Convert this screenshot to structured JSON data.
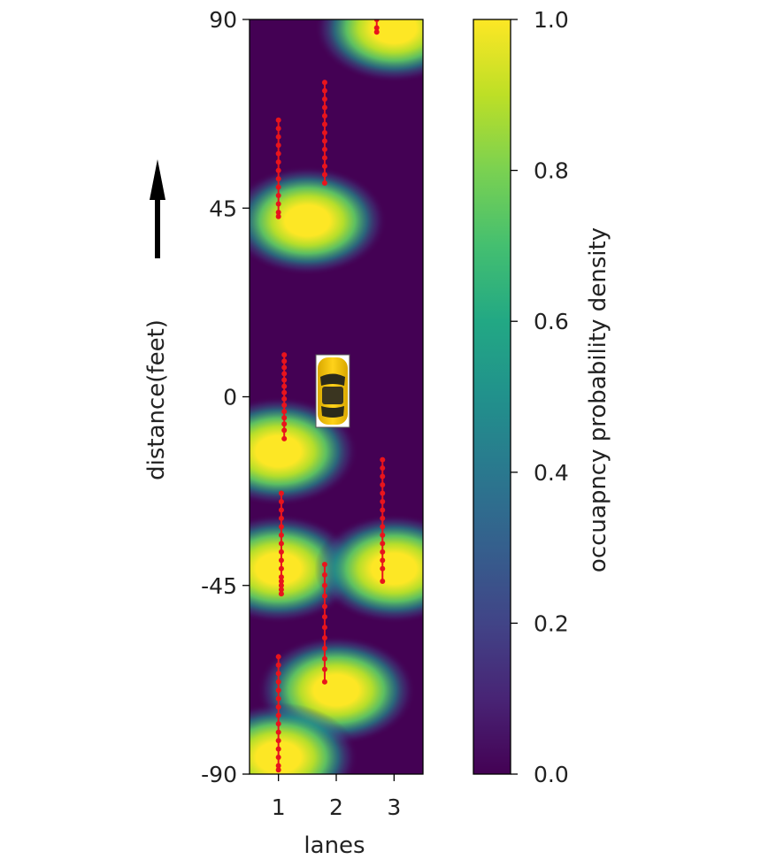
{
  "chart_data": {
    "type": "heatmap",
    "xlabel": "lanes",
    "ylabel": "distance(feet)",
    "x_ticks": [
      1,
      2,
      3
    ],
    "y_ticks": [
      90,
      45,
      0,
      -45,
      -90
    ],
    "xlim": [
      0.5,
      3.5
    ],
    "ylim": [
      -90,
      90
    ],
    "colorbar": {
      "label": "occuapncy probability density",
      "ticks": [
        1.0,
        0.8,
        0.6,
        0.4,
        0.2,
        0.0
      ],
      "tick_labels": [
        "1.0",
        "0.8",
        "0.6",
        "0.4",
        "0.2",
        "0.0"
      ],
      "range": [
        0,
        1
      ],
      "colormap": "viridis"
    },
    "hotspots": [
      {
        "lane": 3,
        "distance": 88,
        "peak": 1.0
      },
      {
        "lane": 1.5,
        "distance": 42,
        "peak": 1.0
      },
      {
        "lane": 1,
        "distance": -13,
        "peak": 1.0
      },
      {
        "lane": 1,
        "distance": -41,
        "peak": 1.0
      },
      {
        "lane": 3,
        "distance": -41,
        "peak": 1.0
      },
      {
        "lane": 2,
        "distance": -70,
        "peak": 1.0
      },
      {
        "lane": 1,
        "distance": -86,
        "peak": 1.0
      }
    ],
    "trajectories": [
      {
        "x": [
          1,
          1,
          1,
          1,
          1,
          1,
          1,
          1,
          1,
          1,
          1,
          1,
          1
        ],
        "y": [
          66,
          64,
          62,
          60,
          58,
          56,
          54,
          52,
          50,
          48,
          46,
          44,
          43
        ]
      },
      {
        "x": [
          1.8,
          1.8,
          1.8,
          1.8,
          1.8,
          1.8,
          1.8,
          1.8,
          1.8,
          1.8,
          1.8,
          1.8,
          1.8
        ],
        "y": [
          75,
          73,
          71,
          69,
          67,
          65,
          63,
          61,
          59,
          57,
          55,
          53,
          51
        ]
      },
      {
        "x": [
          2.7,
          2.7,
          2.7
        ],
        "y": [
          90,
          88,
          87
        ]
      },
      {
        "x": [
          1.1,
          1.1,
          1.1,
          1.1,
          1.1,
          1.1,
          1.1,
          1.1,
          1.1,
          1.1,
          1.1,
          1.1,
          1.1,
          1.1
        ],
        "y": [
          10,
          8.5,
          7,
          5.5,
          4,
          2.5,
          1,
          -0.5,
          -2,
          -3.5,
          -5,
          -6.5,
          -8,
          -10
        ]
      },
      {
        "x": [
          1.05,
          1.05,
          1.05,
          1.05,
          1.05,
          1.05,
          1.05,
          1.05,
          1.05,
          1.05,
          1.05,
          1.05,
          1.05,
          1.05,
          1.05
        ],
        "y": [
          -23,
          -25,
          -27,
          -29,
          -31,
          -33,
          -35,
          -37,
          -39,
          -41,
          -43,
          -44,
          -45,
          -46,
          -47
        ]
      },
      {
        "x": [
          2.8,
          2.8,
          2.8,
          2.8,
          2.8,
          2.8,
          2.8,
          2.8,
          2.8,
          2.8,
          2.8,
          2.8,
          2.8,
          2.8,
          2.8
        ],
        "y": [
          -15,
          -17,
          -19,
          -21,
          -23,
          -25,
          -27,
          -29,
          -31,
          -33,
          -35,
          -37,
          -39,
          -41,
          -44
        ]
      },
      {
        "x": [
          1.8,
          1.8,
          1.8,
          1.8,
          1.8,
          1.8,
          1.8,
          1.8,
          1.8,
          1.8,
          1.8,
          1.8
        ],
        "y": [
          -40,
          -42.5,
          -45,
          -47.5,
          -50,
          -52.5,
          -55,
          -57.5,
          -60,
          -62.5,
          -65,
          -68
        ]
      },
      {
        "x": [
          1,
          1,
          1,
          1,
          1,
          1,
          1,
          1,
          1,
          1,
          1,
          1,
          1,
          1,
          1
        ],
        "y": [
          -62,
          -64,
          -66,
          -68,
          -70,
          -72,
          -74,
          -76,
          -78,
          -80,
          -82,
          -84,
          -86,
          -88,
          -89
        ]
      }
    ],
    "ego_vehicle": {
      "lane": 1.85,
      "distance": 0,
      "color": "#f5c400"
    },
    "colors": {
      "trajectory": "#e8141c",
      "background": "#440154",
      "arrow": "#000000"
    }
  }
}
